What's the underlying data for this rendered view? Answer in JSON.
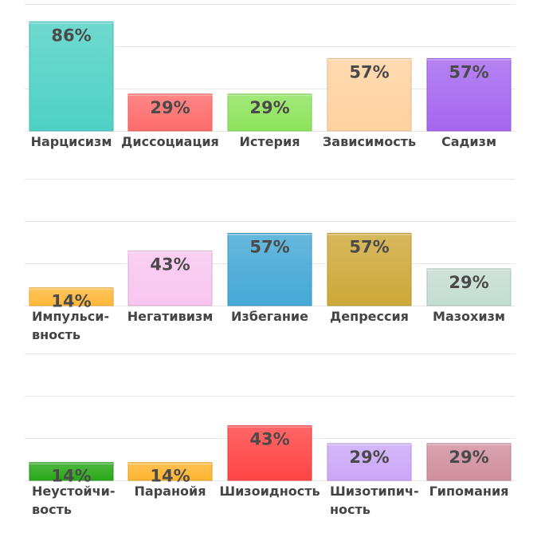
{
  "chart_data": [
    {
      "type": "bar",
      "categories": [
        "Нарцисизм",
        "Диссоциация",
        "Истерия",
        "Зависимость",
        "Садизм"
      ],
      "values": [
        86,
        29,
        29,
        57,
        57
      ],
      "value_labels": [
        "86%",
        "29%",
        "29%",
        "57%",
        "57%"
      ],
      "colors": [
        "#4fd1c5",
        "#ff6b6b",
        "#8de35c",
        "#ffd2a0",
        "#a567ef"
      ],
      "ylim": [
        0,
        100
      ],
      "grid": true
    },
    {
      "type": "bar",
      "categories": [
        "Импульси-\nвность",
        "Негативизм",
        "Избегание",
        "Депрессия",
        "Мазохизм"
      ],
      "values": [
        14,
        43,
        57,
        57,
        29
      ],
      "value_labels": [
        "14%",
        "43%",
        "57%",
        "57%",
        "29%"
      ],
      "colors": [
        "#ffb83a",
        "#f8c6ef",
        "#45a8d6",
        "#cda93a",
        "#c4ddd2"
      ],
      "ylim": [
        0,
        100
      ],
      "grid": true
    },
    {
      "type": "bar",
      "categories": [
        "Неустойчи-\nвость",
        "Паранойя",
        "Шизоидность",
        "Шизотипич-\nность",
        "Гипомания"
      ],
      "values": [
        14,
        14,
        43,
        29,
        29
      ],
      "value_labels": [
        "14%",
        "14%",
        "43%",
        "29%",
        "29%"
      ],
      "colors": [
        "#28a818",
        "#ffb42e",
        "#ff4444",
        "#cba7f7",
        "#d18f9e"
      ],
      "ylim": [
        0,
        100
      ],
      "grid": true
    }
  ]
}
